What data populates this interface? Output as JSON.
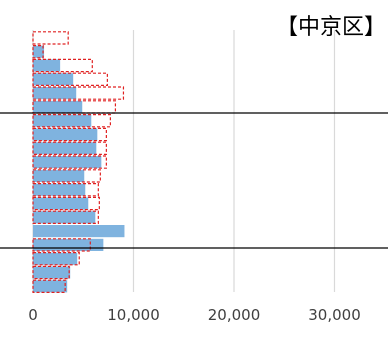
{
  "chart_data": {
    "type": "bar",
    "orientation": "horizontal",
    "title": "【中京区】",
    "xlabel": "",
    "ylabel": "",
    "xlim": [
      0,
      35000
    ],
    "x_ticks": [
      0,
      10000,
      20000,
      30000
    ],
    "x_tick_labels": [
      "0",
      "10,000",
      "20,000",
      "30,000"
    ],
    "grid": "vertical",
    "legend": "none",
    "row_count": 19,
    "series": [
      {
        "style": "filled",
        "color": "#7fb3df",
        "values": [
          0,
          1100,
          2700,
          4000,
          4300,
          4900,
          5800,
          6400,
          6300,
          6800,
          5100,
          5200,
          5500,
          6200,
          9100,
          7000,
          4400,
          3700,
          3400
        ]
      },
      {
        "style": "dashed-outline",
        "color": "#e02020",
        "values": [
          3500,
          1000,
          5900,
          7400,
          9000,
          8200,
          7700,
          7300,
          7300,
          7300,
          6700,
          6500,
          6600,
          6500,
          0,
          5700,
          4600,
          3600,
          3200
        ]
      }
    ],
    "reference_lines": [
      "upper",
      "lower"
    ]
  }
}
